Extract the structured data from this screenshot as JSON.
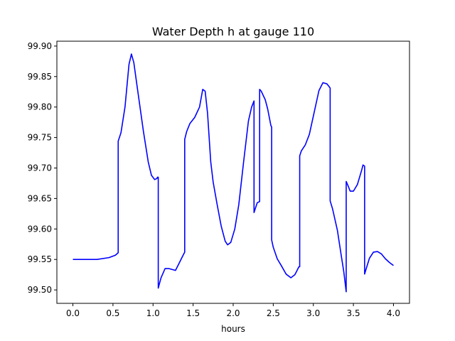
{
  "chart_data": {
    "type": "line",
    "title": "Water Depth h at gauge 110",
    "xlabel": "hours",
    "ylabel": "",
    "xlim": [
      -0.2,
      4.2
    ],
    "ylim": [
      99.478,
      99.908
    ],
    "xticks": [
      0.0,
      0.5,
      1.0,
      1.5,
      2.0,
      2.5,
      3.0,
      3.5,
      4.0
    ],
    "xtick_labels": [
      "0.0",
      "0.5",
      "1.0",
      "1.5",
      "2.0",
      "2.5",
      "3.0",
      "3.5",
      "4.0"
    ],
    "yticks": [
      99.5,
      99.55,
      99.6,
      99.65,
      99.7,
      99.75,
      99.8,
      99.85,
      99.9
    ],
    "ytick_labels": [
      "99.50",
      "99.55",
      "99.60",
      "99.65",
      "99.70",
      "99.75",
      "99.80",
      "99.85",
      "99.90"
    ],
    "grid": false,
    "series": [
      {
        "color": "#0000ff",
        "x": [
          0.0,
          0.3,
          0.45,
          0.53,
          0.565,
          0.565,
          0.6,
          0.65,
          0.7,
          0.73,
          0.76,
          0.8,
          0.88,
          0.94,
          0.98,
          1.02,
          1.05,
          1.055,
          1.065,
          1.065,
          1.075,
          1.1,
          1.15,
          1.2,
          1.28,
          1.33,
          1.36,
          1.395,
          1.395,
          1.42,
          1.46,
          1.52,
          1.58,
          1.62,
          1.65,
          1.68,
          1.72,
          1.75,
          1.8,
          1.85,
          1.9,
          1.93,
          1.97,
          2.02,
          2.07,
          2.13,
          2.19,
          2.23,
          2.26,
          2.26,
          2.28,
          2.3,
          2.33,
          2.33,
          2.35,
          2.4,
          2.43,
          2.47,
          2.48,
          2.48,
          2.5,
          2.55,
          2.6,
          2.66,
          2.72,
          2.77,
          2.82,
          2.83,
          2.83,
          2.85,
          2.9,
          2.95,
          3.0,
          3.07,
          3.12,
          3.17,
          3.2,
          3.21,
          3.21,
          3.24,
          3.3,
          3.35,
          3.38,
          3.41,
          3.41,
          3.43,
          3.46,
          3.5,
          3.55,
          3.6,
          3.62,
          3.64,
          3.64,
          3.66,
          3.7,
          3.75,
          3.8,
          3.85,
          3.9,
          3.95,
          4.0
        ],
        "y": [
          99.55,
          99.55,
          99.553,
          99.557,
          99.561,
          99.744,
          99.758,
          99.8,
          99.87,
          99.887,
          99.873,
          99.835,
          99.76,
          99.71,
          99.688,
          99.681,
          99.683,
          99.685,
          99.685,
          99.503,
          99.508,
          99.52,
          99.535,
          99.535,
          99.532,
          99.545,
          99.553,
          99.562,
          99.747,
          99.76,
          99.773,
          99.783,
          99.8,
          99.829,
          99.826,
          99.79,
          99.71,
          99.677,
          99.64,
          99.605,
          99.58,
          99.574,
          99.578,
          99.6,
          99.64,
          99.71,
          99.777,
          99.8,
          99.81,
          99.627,
          99.635,
          99.643,
          99.645,
          99.829,
          99.826,
          99.812,
          99.797,
          99.77,
          99.767,
          99.582,
          99.57,
          99.551,
          99.54,
          99.526,
          99.52,
          99.525,
          99.538,
          99.538,
          99.72,
          99.728,
          99.738,
          99.755,
          99.785,
          99.827,
          99.84,
          99.838,
          99.833,
          99.831,
          99.646,
          99.633,
          99.598,
          99.555,
          99.53,
          99.497,
          99.678,
          99.672,
          99.662,
          99.662,
          99.673,
          99.695,
          99.705,
          99.703,
          99.526,
          99.535,
          99.552,
          99.562,
          99.563,
          99.559,
          99.551,
          99.545,
          99.54
        ]
      }
    ]
  }
}
